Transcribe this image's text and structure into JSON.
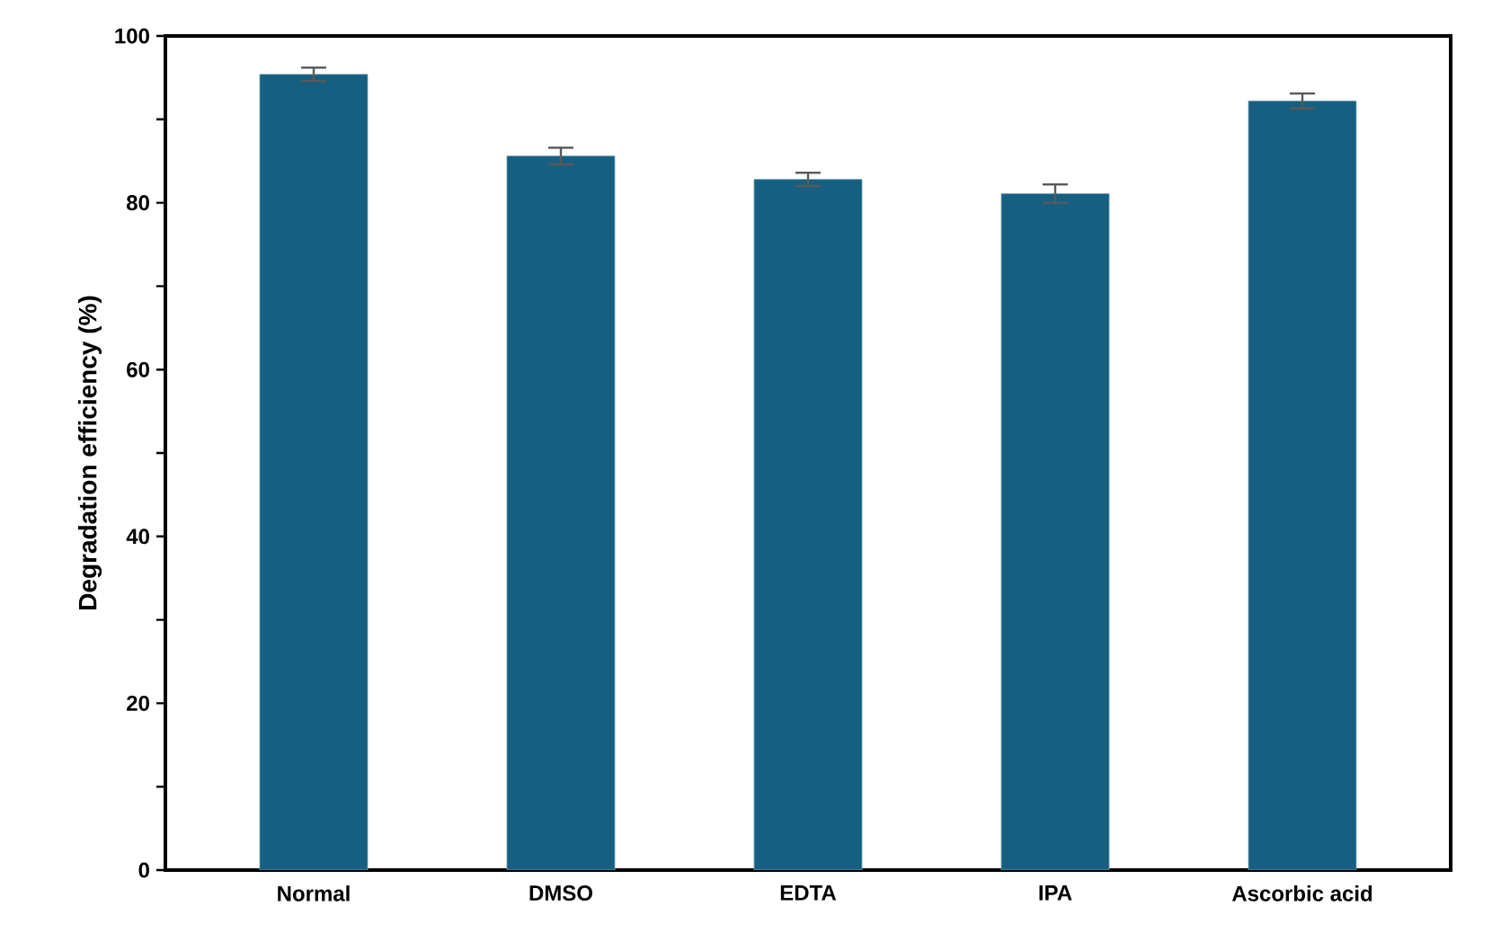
{
  "chart_data": {
    "type": "bar",
    "ylabel": "Degradation efficiency (%)",
    "categories": [
      "Normal",
      "DMSO",
      "EDTA",
      "IPA",
      "Ascorbic acid"
    ],
    "values": [
      95.4,
      85.6,
      82.8,
      81.1,
      92.2
    ],
    "errors": [
      0.8,
      1.0,
      0.8,
      1.1,
      0.9
    ],
    "color": "#175f80",
    "ylim": [
      0,
      100
    ],
    "yticks": [
      0,
      {
        "value": 10,
        "label": null
      },
      20,
      {
        "value": 30,
        "label": null
      },
      40,
      {
        "value": 50,
        "label": null
      },
      60,
      {
        "value": 70,
        "label": null
      },
      80,
      {
        "value": 90,
        "label": null
      },
      100
    ],
    "grid": false
  }
}
